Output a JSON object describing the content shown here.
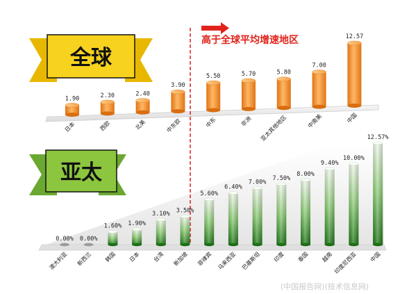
{
  "chart_data": [
    {
      "type": "bar",
      "label": "全球",
      "categories": [
        "日本",
        "西欧",
        "北美",
        "中东欧",
        "中东",
        "非洲",
        "亚太其他地区",
        "中南美",
        "中国"
      ],
      "values": [
        1.9,
        2.3,
        2.4,
        3.9,
        5.5,
        5.7,
        5.8,
        7.0,
        12.57
      ],
      "value_labels": [
        "1.90",
        "2.30",
        "2.40",
        "3.90",
        "5.50",
        "5.70",
        "5.80",
        "7.00",
        "12.57"
      ],
      "bar_color": "#f0902a",
      "annotation": "高于全球平均增速地区"
    },
    {
      "type": "bar",
      "label": "亚太",
      "categories": [
        "澳大利亚",
        "新西兰",
        "韩国",
        "日本",
        "台湾",
        "新加坡",
        "菲律宾",
        "马来西亚",
        "巴基斯坦",
        "印度",
        "泰国",
        "越南",
        "印度尼西亚",
        "中国"
      ],
      "values": [
        0.0,
        0.0,
        1.6,
        1.9,
        3.1,
        3.5,
        5.6,
        6.4,
        7.0,
        7.5,
        8.0,
        9.4,
        10.0,
        12.57
      ],
      "value_labels": [
        "0.00%",
        "0.00%",
        "1.60%",
        "1.90%",
        "3.10%",
        "3.50%",
        "5.60%",
        "6.40%",
        "7.00%",
        "7.50%",
        "8.00%",
        "9.40%",
        "10.00%",
        "12.57%"
      ],
      "bar_color": "#3a9a2a"
    }
  ],
  "ribbons": {
    "global": {
      "text": "全球",
      "bg": "#f7d21e"
    },
    "asia": {
      "text": "亚太",
      "bg": "#8cc63f"
    }
  },
  "highlight_text": "高于全球平均增速地区",
  "watermark": "(中国报告网)(技术信息网)"
}
